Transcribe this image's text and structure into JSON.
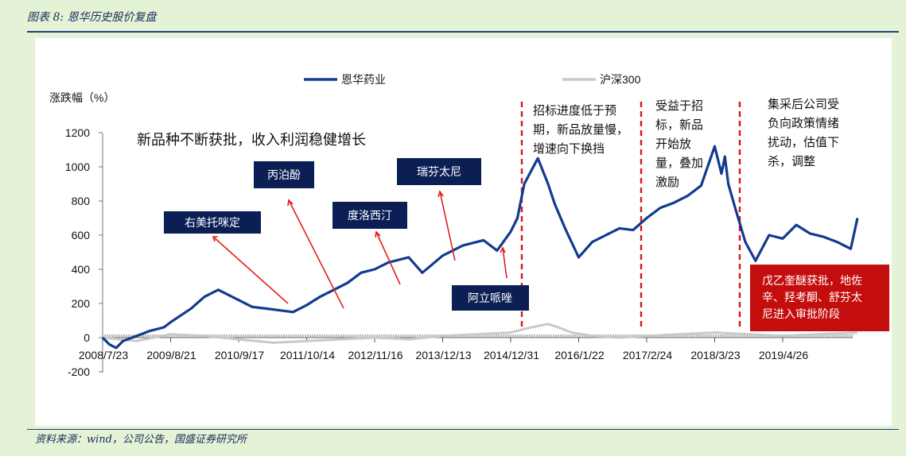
{
  "header": {
    "title": "图表 8:  恩华历史股价复盘"
  },
  "footer": {
    "source": "资料来源：wind，公司公告，国盛证券研究所"
  },
  "colors": {
    "series_primary": "#123b8f",
    "series_secondary": "#c9c9c9",
    "annotation_arrow": "#e0201a",
    "box_navy": "#0c1f55",
    "box_red": "#c40d0d"
  },
  "chart_data": {
    "type": "line",
    "ylabel": "涨跌幅（%）",
    "ylim": [
      -200,
      1200
    ],
    "yticks": [
      -200,
      0,
      200,
      400,
      600,
      800,
      1000,
      1200
    ],
    "xticks": [
      "2008/7/23",
      "2009/8/21",
      "2010/9/17",
      "2011/10/14",
      "2012/11/16",
      "2013/12/13",
      "2014/12/31",
      "2016/1/22",
      "2017/2/24",
      "2018/3/23",
      "2019/4/26"
    ],
    "legend_position": "top-center",
    "series": [
      {
        "name": "恩华药业",
        "x": [
          0,
          0.1,
          0.2,
          0.3,
          0.5,
          0.7,
          0.9,
          1.0,
          1.3,
          1.5,
          1.7,
          2.0,
          2.2,
          2.4,
          2.6,
          2.8,
          3.0,
          3.2,
          3.4,
          3.6,
          3.8,
          4.0,
          4.2,
          4.5,
          4.7,
          5.0,
          5.3,
          5.6,
          5.8,
          6.0,
          6.1,
          6.2,
          6.4,
          6.55,
          6.65,
          6.8,
          7.0,
          7.2,
          7.4,
          7.6,
          7.8,
          8.0,
          8.2,
          8.4,
          8.6,
          8.8,
          9.0,
          9.1,
          9.15,
          9.2,
          9.3,
          9.45,
          9.6,
          9.8,
          10.0,
          10.2,
          10.4,
          10.6,
          10.8,
          11.0,
          11.1
        ],
        "values": [
          0,
          -40,
          -60,
          -20,
          10,
          40,
          60,
          90,
          170,
          240,
          280,
          220,
          180,
          170,
          160,
          150,
          190,
          240,
          280,
          320,
          380,
          400,
          440,
          470,
          380,
          480,
          540,
          570,
          510,
          620,
          700,
          900,
          1050,
          900,
          780,
          640,
          470,
          560,
          600,
          640,
          630,
          700,
          760,
          790,
          830,
          890,
          1120,
          960,
          1060,
          900,
          760,
          560,
          450,
          600,
          580,
          660,
          610,
          590,
          560,
          520,
          700
        ]
      },
      {
        "name": "沪深300",
        "x": [
          0,
          0.5,
          1.0,
          1.5,
          2.0,
          2.5,
          3.0,
          3.5,
          4.0,
          4.5,
          5.0,
          5.5,
          6.0,
          6.3,
          6.55,
          6.7,
          6.9,
          7.2,
          7.6,
          8.0,
          8.5,
          9.0,
          9.5,
          10.0,
          10.5,
          11.1
        ],
        "values": [
          0,
          -20,
          20,
          10,
          -10,
          -30,
          -20,
          -10,
          0,
          -10,
          10,
          20,
          30,
          60,
          80,
          60,
          30,
          10,
          0,
          10,
          20,
          30,
          20,
          10,
          20,
          30
        ]
      }
    ],
    "annotations": {
      "headline": "新品种不断获批，收入利润稳健增长",
      "products": [
        "右美托咪定",
        "丙泊酚",
        "度洛西汀",
        "瑞芬太尼",
        "阿立哌唑"
      ],
      "phase1": "招标进度低于预期，新品放量慢，增速向下换挡",
      "phase2": "受益于招标，新品开始放量，叠加激励",
      "phase3": "集采后公司受负向政策情绪扰动，估值下杀，调整",
      "red_box": "戊乙奎醚获批，地佐辛、羟考酮、舒芬太尼进入审批阶段"
    }
  }
}
